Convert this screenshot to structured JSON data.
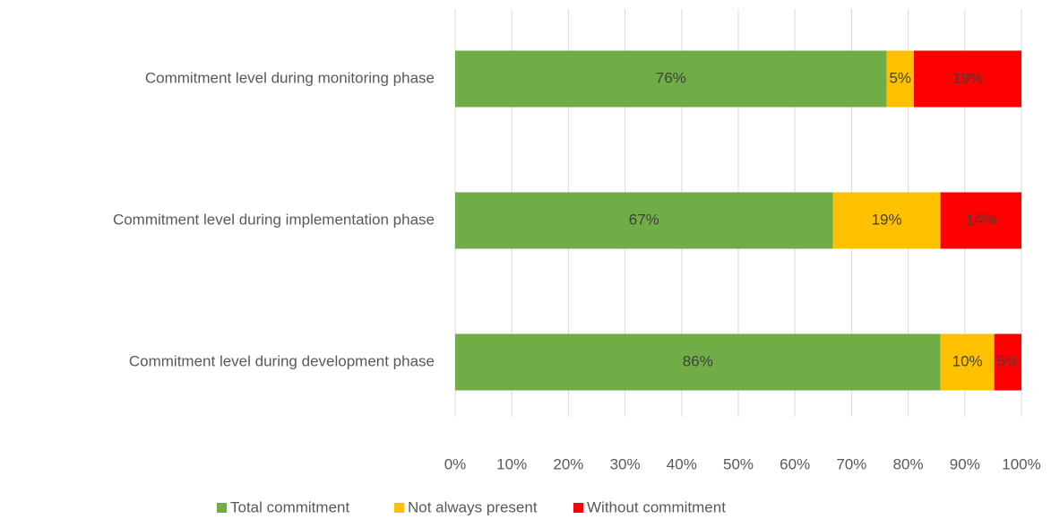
{
  "chart_data": {
    "type": "stacked-barh",
    "categories": [
      "Commitment level during monitoring phase",
      "Commitment level during implementation phase",
      "Commitment level during development phase"
    ],
    "series": [
      {
        "name": "Total commitment",
        "color": "#70ad47",
        "values": [
          76.2,
          66.7,
          85.7
        ],
        "value_labels": [
          "76%",
          "67%",
          "86%"
        ]
      },
      {
        "name": "Not always present",
        "color": "#ffc000",
        "values": [
          4.8,
          19.0,
          9.5
        ],
        "value_labels": [
          "5%",
          "19%",
          "10%"
        ]
      },
      {
        "name": "Without commitment",
        "color": "#ff0000",
        "values": [
          19.0,
          14.3,
          4.8
        ],
        "value_labels": [
          "19%",
          "14%",
          "5%"
        ]
      }
    ],
    "xlim": [
      0,
      100
    ],
    "xticks": [
      {
        "value": 0,
        "label": "0%"
      },
      {
        "value": 10,
        "label": "10%"
      },
      {
        "value": 20,
        "label": "20%"
      },
      {
        "value": 30,
        "label": "30%"
      },
      {
        "value": 40,
        "label": "40%"
      },
      {
        "value": 50,
        "label": "50%"
      },
      {
        "value": 60,
        "label": "60%"
      },
      {
        "value": 70,
        "label": "70%"
      },
      {
        "value": 80,
        "label": "80%"
      },
      {
        "value": 90,
        "label": "90%"
      },
      {
        "value": 100,
        "label": "100%"
      }
    ],
    "grid": true,
    "legend": "bottom"
  }
}
